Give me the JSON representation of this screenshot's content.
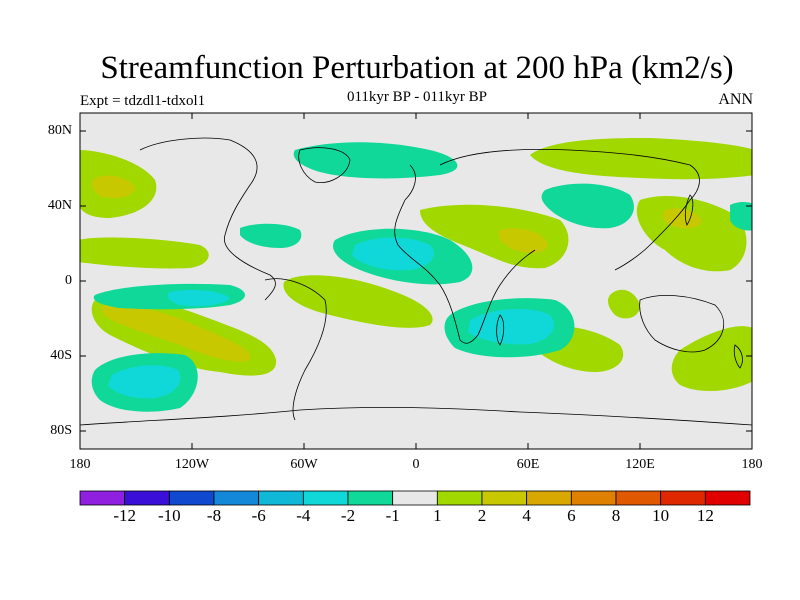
{
  "title": "Streamfunction Perturbation at 200 hPa (km2/s)",
  "left_label": "Expt = tdzdl1-tdxol1",
  "center_label": "011kyr BP - 011kyr BP",
  "right_label": "ANN",
  "lat_labels": [
    "80N",
    "40N",
    "0",
    "40S",
    "80S"
  ],
  "lon_labels": [
    "180",
    "120W",
    "60W",
    "0",
    "60E",
    "120E",
    "180"
  ],
  "colorbar": {
    "colors": [
      "#8f20e0",
      "#3a10d8",
      "#1048d0",
      "#1488d8",
      "#10b8d8",
      "#10d8d8",
      "#10d898",
      "#e8e8e8",
      "#a0d800",
      "#c8c800",
      "#d8a800",
      "#e08000",
      "#e05800",
      "#e02800",
      "#e00000"
    ],
    "labels": [
      "-12",
      "-10",
      "-8",
      "-6",
      "-4",
      "-2",
      "-1",
      "1",
      "2",
      "4",
      "6",
      "8",
      "10",
      "12"
    ]
  },
  "chart_data": {
    "type": "filled-contour-map",
    "title": "Streamfunction Perturbation at 200 hPa (km2/s)",
    "subtitle": "011kyr BP - 011kyr BP",
    "experiment": "Expt = tdzdl1-tdxol1",
    "season": "ANN",
    "units": "km2/s",
    "lon_range": [
      -180,
      180
    ],
    "lat_range": [
      -90,
      90
    ],
    "contour_levels": [
      -12,
      -10,
      -8,
      -6,
      -4,
      -2,
      -1,
      1,
      2,
      4,
      6,
      8,
      10,
      12
    ]
  }
}
